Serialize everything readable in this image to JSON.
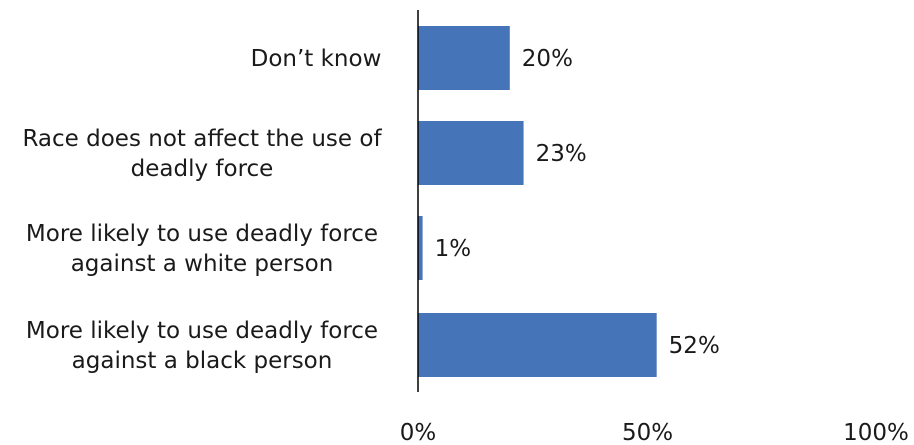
{
  "chart_data": {
    "type": "bar",
    "orientation": "horizontal",
    "categories": [
      [
        "Don’t know"
      ],
      [
        "Race does not affect the use of",
        "deadly force"
      ],
      [
        "More likely to use deadly force",
        "against a white person"
      ],
      [
        "More likely to use deadly force",
        "against a black person"
      ]
    ],
    "values": [
      20,
      23,
      1,
      52
    ],
    "value_labels": [
      "20%",
      "23%",
      "1%",
      "52%"
    ],
    "xlim": [
      0,
      100
    ],
    "x_ticks": [
      0,
      50,
      100
    ],
    "x_tick_labels": [
      "0%",
      "50%",
      "100%"
    ],
    "bar_color": "#4674b8",
    "grid": false,
    "legend": "none"
  }
}
